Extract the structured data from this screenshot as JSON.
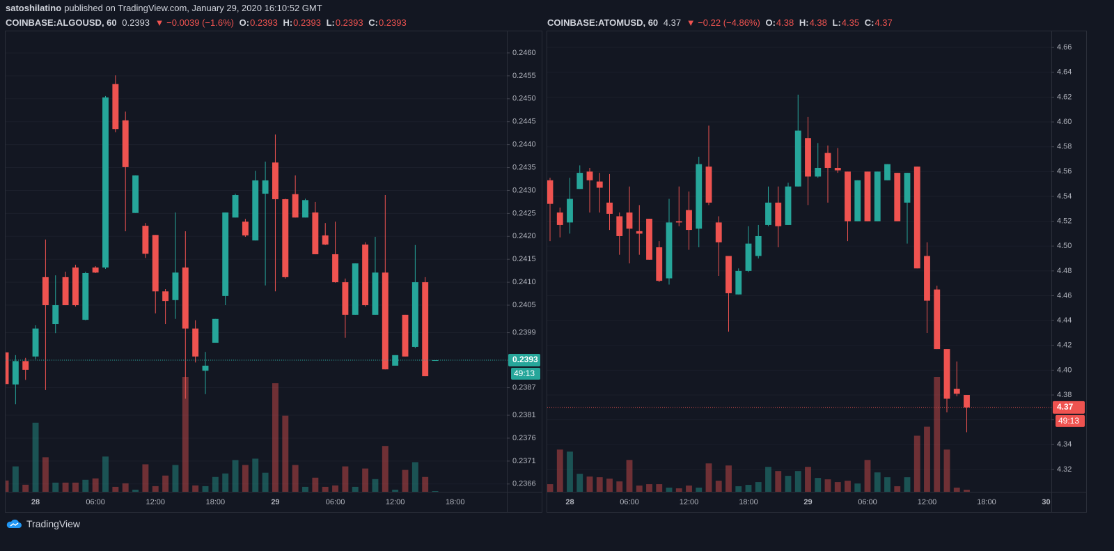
{
  "header": {
    "author": "satoshilatino",
    "published": "published on TradingView.com, January 29, 2020 16:10:52 GMT",
    "ohlc_labels": [
      "O:",
      "H:",
      "L:",
      "C:"
    ]
  },
  "chart_data": [
    {
      "type": "candlestick",
      "symbol": "COINBASE:ALGOUSD, 60",
      "change": "▼ −0.0039 (−1.6%)",
      "countdown": "49:13",
      "colors": {
        "up": "#26a69a",
        "down": "#ef5350"
      },
      "grid": true,
      "categories": [
        null,
        null,
        null,
        "28",
        null,
        null,
        null,
        null,
        null,
        "06:00",
        null,
        null,
        null,
        null,
        null,
        "12:00",
        null,
        null,
        null,
        null,
        null,
        "18:00",
        null,
        null,
        null,
        null,
        null,
        "29",
        null,
        null,
        null,
        null,
        null,
        "06:00",
        null,
        null,
        null,
        null,
        null,
        "12:00",
        null,
        null,
        null,
        null,
        null,
        "18:00",
        null,
        null,
        null,
        null
      ],
      "open": [
        0.23947,
        0.23877,
        0.23928,
        0.23938,
        0.24111,
        0.24009,
        0.24111,
        0.24132,
        0.24018,
        0.24132,
        0.24132,
        0.24532,
        0.24453,
        0.24251,
        0.24223,
        0.24203,
        0.2408,
        0.24061,
        0.24132,
        0.23999,
        0.23907,
        0.23968,
        0.2407,
        0.24241,
        0.24232,
        0.24191,
        0.24293,
        0.24361,
        0.24281,
        0.24292,
        0.24241,
        0.24252,
        0.24202,
        0.24161,
        0.241,
        0.24029,
        0.24182,
        0.24029,
        0.24121,
        0.23918,
        0.24029,
        0.23959,
        0.241,
        0.2393,
        null,
        null,
        null,
        null,
        null,
        null
      ],
      "high": [
        0.23947,
        0.23941,
        0.23935,
        0.24006,
        0.24193,
        0.24115,
        0.24123,
        0.24138,
        0.24123,
        0.24135,
        0.24506,
        0.24551,
        0.24472,
        0.24333,
        0.24229,
        0.24203,
        0.24085,
        0.24252,
        0.24211,
        0.24017,
        0.23948,
        0.2402,
        0.24252,
        0.24293,
        0.24238,
        0.24343,
        0.24363,
        0.24422,
        0.24282,
        0.24333,
        0.24282,
        0.24275,
        0.24229,
        0.24232,
        0.24108,
        0.24141,
        0.24187,
        0.24199,
        0.2429,
        0.23941,
        0.24029,
        0.24181,
        0.24111,
        0.2393,
        null,
        null,
        null,
        null,
        null,
        null
      ],
      "low": [
        0.23878,
        0.23834,
        0.23887,
        0.23932,
        0.23865,
        0.23989,
        0.2405,
        0.24047,
        0.24017,
        0.2412,
        0.24129,
        0.24427,
        0.24211,
        0.24251,
        0.24153,
        0.24032,
        0.24009,
        0.2402,
        0.23846,
        0.23925,
        0.23856,
        0.23968,
        0.2405,
        0.24241,
        0.24199,
        0.24191,
        0.24093,
        0.2408,
        0.24108,
        0.24241,
        0.24241,
        0.24161,
        0.24181,
        0.24099,
        0.23979,
        0.24029,
        0.24047,
        0.24029,
        0.2391,
        0.23918,
        0.23938,
        0.23956,
        0.23895,
        0.2393,
        null,
        null,
        null,
        null,
        null,
        null
      ],
      "close": [
        0.23878,
        0.23928,
        0.23909,
        0.23999,
        0.2405,
        0.2405,
        0.2405,
        0.2405,
        0.2412,
        0.24121,
        0.24503,
        0.24434,
        0.24351,
        0.24333,
        0.24162,
        0.2408,
        0.24059,
        0.24121,
        0.23999,
        0.23938,
        0.23918,
        0.2402,
        0.24252,
        0.2429,
        0.24202,
        0.24322,
        0.24322,
        0.24281,
        0.24111,
        0.24241,
        0.24279,
        0.24161,
        0.24182,
        0.241,
        0.24029,
        0.24141,
        0.2405,
        0.24121,
        0.2391,
        0.23941,
        0.23938,
        0.241,
        0.23895,
        0.2393,
        null,
        null,
        null,
        null,
        null,
        null
      ],
      "volume": [
        16,
        36,
        10,
        98,
        49,
        13,
        13,
        13,
        17,
        19,
        50,
        7,
        12,
        3,
        39,
        8,
        23,
        38,
        163,
        9,
        8,
        21,
        26,
        45,
        38,
        47,
        27,
        154,
        108,
        38,
        7,
        20,
        7,
        9,
        36,
        7,
        33,
        18,
        65,
        3,
        31,
        42,
        21,
        1,
        null,
        null,
        null,
        null,
        null,
        null
      ],
      "ylim": [
        0.23643,
        0.24647
      ],
      "yticks": [
        {
          "value": 0.246,
          "label": "0.2460"
        },
        0.2455,
        {
          "value": 0.245,
          "label": "0.2450"
        },
        0.2445,
        {
          "value": 0.244,
          "label": "0.2440"
        },
        0.2435,
        {
          "value": 0.243,
          "label": "0.2430"
        },
        0.2425,
        {
          "value": 0.242,
          "label": "0.2420"
        },
        0.2415,
        {
          "value": 0.241,
          "label": "0.2410"
        },
        0.2405,
        0.2399,
        0.2393,
        0.2387,
        0.2381,
        0.2376,
        0.2371,
        0.2366
      ]
    },
    {
      "type": "candlestick",
      "symbol": "COINBASE:ATOMUSD, 60",
      "change": "▼ −0.22 (−4.86%)",
      "countdown": "49:13",
      "colors": {
        "up": "#26a69a",
        "down": "#ef5350"
      },
      "grid": true,
      "categories": [
        null,
        null,
        "28",
        null,
        null,
        null,
        null,
        null,
        "06:00",
        null,
        null,
        null,
        null,
        null,
        "12:00",
        null,
        null,
        null,
        null,
        null,
        "18:00",
        null,
        null,
        null,
        null,
        null,
        "29",
        null,
        null,
        null,
        null,
        null,
        "06:00",
        null,
        null,
        null,
        null,
        null,
        "12:00",
        null,
        null,
        null,
        null,
        null,
        "18:00",
        null,
        null,
        null,
        null,
        null,
        "30"
      ],
      "open": [
        4.553,
        4.527,
        4.519,
        4.546,
        4.56,
        4.552,
        4.535,
        4.524,
        4.527,
        4.512,
        4.522,
        4.499,
        4.474,
        4.52,
        4.529,
        4.514,
        4.564,
        4.519,
        4.492,
        4.461,
        4.48,
        4.492,
        4.517,
        4.535,
        4.517,
        4.548,
        4.587,
        4.556,
        4.575,
        4.563,
        4.56,
        4.52,
        4.56,
        4.52,
        4.553,
        4.559,
        4.535,
        4.564,
        4.492,
        4.465,
        4.417,
        4.385,
        4.38,
        null,
        null,
        null,
        null,
        null,
        null,
        null,
        null
      ],
      "high": [
        4.555,
        4.531,
        4.555,
        4.565,
        4.563,
        4.559,
        4.558,
        4.527,
        4.548,
        4.533,
        4.522,
        4.504,
        4.538,
        4.548,
        4.544,
        4.572,
        4.597,
        4.524,
        4.492,
        4.482,
        4.516,
        4.517,
        4.548,
        4.548,
        4.551,
        4.622,
        4.604,
        4.583,
        4.581,
        4.579,
        4.56,
        4.553,
        4.56,
        4.56,
        4.566,
        4.559,
        4.559,
        4.564,
        4.503,
        4.468,
        4.417,
        4.407,
        4.38,
        null,
        null,
        null,
        null,
        null,
        null,
        null,
        null
      ],
      "low": [
        4.504,
        4.507,
        4.51,
        4.546,
        4.527,
        4.527,
        4.513,
        4.493,
        4.486,
        4.493,
        4.489,
        4.471,
        4.469,
        4.516,
        4.497,
        4.499,
        4.533,
        4.476,
        4.431,
        4.461,
        4.479,
        4.49,
        4.516,
        4.499,
        4.517,
        4.548,
        4.533,
        4.555,
        4.535,
        4.559,
        4.504,
        4.52,
        4.52,
        4.52,
        4.553,
        4.52,
        4.502,
        4.482,
        4.43,
        4.417,
        4.366,
        4.379,
        4.35,
        null,
        null,
        null,
        null,
        null,
        null,
        null,
        null
      ],
      "close": [
        4.534,
        4.517,
        4.538,
        4.559,
        4.553,
        4.547,
        4.526,
        4.508,
        4.514,
        4.51,
        4.489,
        4.472,
        4.519,
        4.519,
        4.513,
        4.566,
        4.535,
        4.503,
        4.462,
        4.48,
        4.502,
        4.508,
        4.535,
        4.516,
        4.548,
        4.593,
        4.556,
        4.563,
        4.563,
        4.561,
        4.52,
        4.553,
        4.52,
        4.56,
        4.566,
        4.52,
        4.559,
        4.482,
        4.456,
        4.417,
        4.377,
        4.381,
        4.37,
        null,
        null,
        null,
        null,
        null,
        null,
        null,
        null
      ],
      "volume": [
        11,
        61,
        58,
        26,
        22,
        21,
        19,
        15,
        46,
        9,
        11,
        11,
        6,
        5,
        9,
        6,
        41,
        16,
        38,
        8,
        10,
        14,
        36,
        30,
        23,
        30,
        36,
        20,
        18,
        14,
        16,
        12,
        46,
        28,
        21,
        8,
        21,
        81,
        94,
        166,
        61,
        6,
        3,
        null,
        null,
        null,
        null,
        null,
        null,
        null,
        null
      ],
      "ylim": [
        4.302,
        4.673
      ],
      "yticks": [
        4.32,
        4.34,
        4.36,
        4.38,
        {
          "value": 4.4,
          "label": "4.40"
        },
        4.42,
        4.44,
        4.46,
        4.48,
        {
          "value": 4.5,
          "label": "4.50"
        },
        4.52,
        4.54,
        4.56,
        4.58,
        {
          "value": 4.6,
          "label": "4.60"
        },
        4.62,
        4.64,
        4.66
      ]
    }
  ],
  "footer": {
    "brand": "TradingView"
  }
}
